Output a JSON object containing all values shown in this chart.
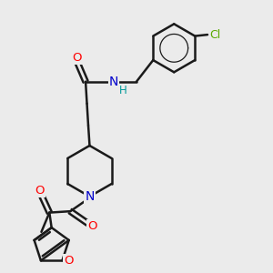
{
  "bg_color": "#ebebeb",
  "bond_color": "#1a1a1a",
  "bond_width": 1.8,
  "atom_colors": {
    "O": "#ff0000",
    "N": "#0000cc",
    "Cl": "#5aaa00",
    "H": "#009999"
  },
  "font_size": 8.5,
  "fig_size": [
    3.0,
    3.0
  ],
  "dpi": 100
}
